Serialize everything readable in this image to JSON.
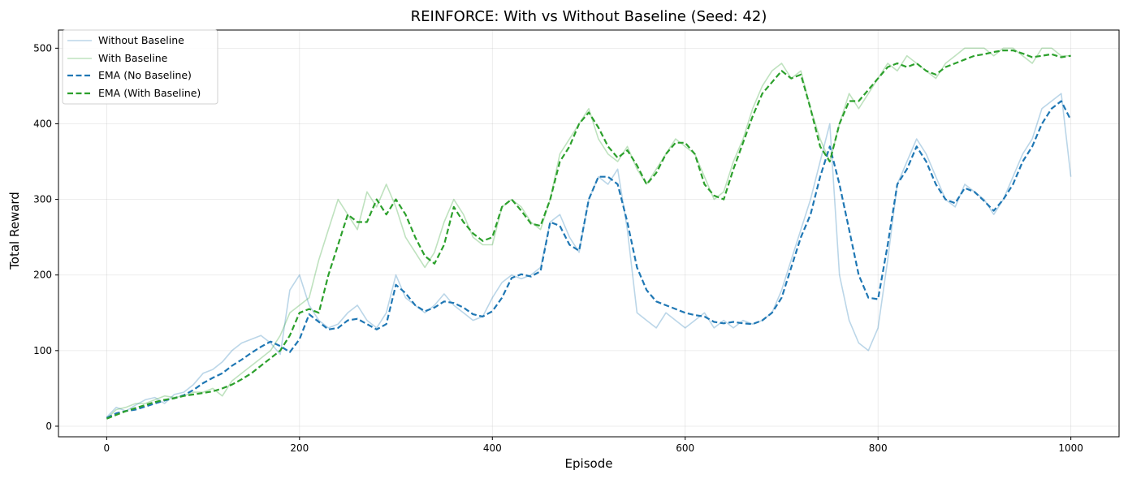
{
  "chart_data": {
    "type": "line",
    "title": "REINFORCE: With vs Without Baseline (Seed: 42)",
    "xlabel": "Episode",
    "ylabel": "Total Reward",
    "xlim": [
      -50,
      1050
    ],
    "ylim": [
      -14,
      524
    ],
    "xticks": [
      0,
      200,
      400,
      600,
      800,
      1000
    ],
    "yticks": [
      0,
      100,
      200,
      300,
      400,
      500
    ],
    "grid": true,
    "legend_position": "top-left",
    "colors": {
      "blue": "#1f77b4",
      "green": "#2ca02c"
    },
    "series": [
      {
        "name": "Without Baseline",
        "style": "raw",
        "color": "#1f77b4",
        "x": [
          0,
          10,
          20,
          30,
          40,
          50,
          60,
          70,
          80,
          90,
          100,
          110,
          120,
          130,
          140,
          150,
          160,
          170,
          180,
          190,
          200,
          210,
          220,
          230,
          240,
          250,
          260,
          270,
          280,
          290,
          300,
          310,
          320,
          330,
          340,
          350,
          360,
          370,
          380,
          390,
          400,
          410,
          420,
          430,
          440,
          450,
          460,
          470,
          480,
          490,
          500,
          510,
          520,
          530,
          540,
          550,
          560,
          570,
          580,
          590,
          600,
          610,
          620,
          630,
          640,
          650,
          660,
          670,
          680,
          690,
          700,
          710,
          720,
          730,
          740,
          750,
          760,
          770,
          780,
          790,
          800,
          810,
          820,
          830,
          840,
          850,
          860,
          870,
          880,
          890,
          900,
          910,
          920,
          930,
          940,
          950,
          960,
          970,
          980,
          990,
          1000
        ],
        "y": [
          12,
          25,
          20,
          28,
          35,
          38,
          30,
          42,
          45,
          55,
          70,
          75,
          85,
          100,
          110,
          115,
          120,
          110,
          95,
          180,
          200,
          160,
          140,
          130,
          135,
          150,
          160,
          140,
          130,
          150,
          200,
          170,
          160,
          150,
          160,
          175,
          160,
          150,
          140,
          145,
          170,
          190,
          200,
          195,
          200,
          210,
          270,
          280,
          250,
          230,
          300,
          330,
          320,
          340,
          260,
          150,
          140,
          130,
          150,
          140,
          130,
          140,
          150,
          130,
          140,
          130,
          140,
          135,
          140,
          150,
          180,
          220,
          260,
          300,
          350,
          400,
          200,
          140,
          110,
          100,
          130,
          220,
          320,
          350,
          380,
          360,
          330,
          300,
          290,
          320,
          310,
          300,
          280,
          300,
          330,
          360,
          380,
          420,
          430,
          440,
          330
        ]
      },
      {
        "name": "With Baseline",
        "style": "raw",
        "color": "#2ca02c",
        "x": [
          0,
          10,
          20,
          30,
          40,
          50,
          60,
          70,
          80,
          90,
          100,
          110,
          120,
          130,
          140,
          150,
          160,
          170,
          180,
          190,
          200,
          210,
          220,
          230,
          240,
          250,
          260,
          270,
          280,
          290,
          300,
          310,
          320,
          330,
          340,
          350,
          360,
          370,
          380,
          390,
          400,
          410,
          420,
          430,
          440,
          450,
          460,
          470,
          480,
          490,
          500,
          510,
          520,
          530,
          540,
          550,
          560,
          570,
          580,
          590,
          600,
          610,
          620,
          630,
          640,
          650,
          660,
          670,
          680,
          690,
          700,
          710,
          720,
          730,
          740,
          750,
          760,
          770,
          780,
          790,
          800,
          810,
          820,
          830,
          840,
          850,
          860,
          870,
          880,
          890,
          900,
          910,
          920,
          930,
          940,
          950,
          960,
          970,
          980,
          990,
          1000
        ],
        "y": [
          10,
          22,
          25,
          30,
          30,
          35,
          40,
          38,
          40,
          45,
          45,
          50,
          40,
          60,
          70,
          80,
          90,
          100,
          120,
          150,
          160,
          170,
          220,
          260,
          300,
          280,
          260,
          310,
          290,
          320,
          290,
          250,
          230,
          210,
          230,
          270,
          300,
          280,
          250,
          240,
          240,
          290,
          300,
          290,
          270,
          260,
          300,
          360,
          380,
          400,
          420,
          380,
          360,
          350,
          370,
          340,
          320,
          340,
          360,
          380,
          370,
          360,
          330,
          300,
          310,
          350,
          380,
          420,
          450,
          470,
          480,
          460,
          470,
          420,
          380,
          350,
          400,
          440,
          420,
          440,
          460,
          480,
          470,
          490,
          480,
          470,
          460,
          480,
          490,
          500,
          500,
          500,
          490,
          500,
          500,
          490,
          480,
          500,
          500,
          490,
          490
        ]
      },
      {
        "name": "EMA (No Baseline)",
        "style": "ema",
        "color": "#1f77b4",
        "x": [
          0,
          10,
          20,
          30,
          40,
          50,
          60,
          70,
          80,
          90,
          100,
          110,
          120,
          130,
          140,
          150,
          160,
          170,
          180,
          190,
          200,
          210,
          220,
          230,
          240,
          250,
          260,
          270,
          280,
          290,
          300,
          310,
          320,
          330,
          340,
          350,
          360,
          370,
          380,
          390,
          400,
          410,
          420,
          430,
          440,
          450,
          460,
          470,
          480,
          490,
          500,
          510,
          520,
          530,
          540,
          550,
          560,
          570,
          580,
          590,
          600,
          610,
          620,
          630,
          640,
          650,
          660,
          670,
          680,
          690,
          700,
          710,
          720,
          730,
          740,
          750,
          760,
          770,
          780,
          790,
          800,
          810,
          820,
          830,
          840,
          850,
          860,
          870,
          880,
          890,
          900,
          910,
          920,
          930,
          940,
          950,
          960,
          970,
          980,
          990,
          1000
        ],
        "y": [
          11,
          17,
          20,
          22,
          26,
          30,
          34,
          37,
          41,
          48,
          57,
          64,
          70,
          80,
          88,
          97,
          105,
          112,
          106,
          98,
          115,
          148,
          138,
          128,
          130,
          140,
          142,
          135,
          128,
          135,
          187,
          176,
          160,
          152,
          157,
          165,
          163,
          157,
          148,
          145,
          152,
          170,
          196,
          201,
          198,
          205,
          270,
          265,
          240,
          232,
          300,
          330,
          330,
          320,
          270,
          210,
          180,
          165,
          160,
          155,
          150,
          147,
          145,
          138,
          136,
          138,
          136,
          135,
          140,
          150,
          170,
          210,
          250,
          280,
          330,
          370,
          320,
          260,
          200,
          170,
          168,
          240,
          320,
          340,
          370,
          350,
          320,
          300,
          295,
          315,
          310,
          298,
          285,
          300,
          320,
          350,
          370,
          400,
          420,
          430,
          405
        ]
      },
      {
        "name": "EMA (With Baseline)",
        "style": "ema",
        "color": "#2ca02c",
        "x": [
          0,
          10,
          20,
          30,
          40,
          50,
          60,
          70,
          80,
          90,
          100,
          110,
          120,
          130,
          140,
          150,
          160,
          170,
          180,
          190,
          200,
          210,
          220,
          230,
          240,
          250,
          260,
          270,
          280,
          290,
          300,
          310,
          320,
          330,
          340,
          350,
          360,
          370,
          380,
          390,
          400,
          410,
          420,
          430,
          440,
          450,
          460,
          470,
          480,
          490,
          500,
          510,
          520,
          530,
          540,
          550,
          560,
          570,
          580,
          590,
          600,
          610,
          620,
          630,
          640,
          650,
          660,
          670,
          680,
          690,
          700,
          710,
          720,
          730,
          740,
          750,
          760,
          770,
          780,
          790,
          800,
          810,
          820,
          830,
          840,
          850,
          860,
          870,
          880,
          890,
          900,
          910,
          920,
          930,
          940,
          950,
          960,
          970,
          980,
          990,
          1000
        ],
        "y": [
          10,
          15,
          20,
          24,
          28,
          32,
          35,
          37,
          40,
          42,
          44,
          46,
          50,
          55,
          62,
          70,
          80,
          90,
          100,
          120,
          150,
          155,
          150,
          200,
          240,
          280,
          270,
          270,
          300,
          280,
          300,
          280,
          250,
          225,
          215,
          240,
          290,
          270,
          255,
          245,
          250,
          290,
          300,
          285,
          268,
          265,
          300,
          350,
          370,
          400,
          415,
          395,
          370,
          355,
          365,
          345,
          320,
          335,
          360,
          375,
          375,
          360,
          320,
          305,
          300,
          340,
          375,
          410,
          440,
          455,
          470,
          460,
          465,
          420,
          370,
          350,
          400,
          430,
          430,
          445,
          460,
          475,
          480,
          475,
          480,
          470,
          465,
          475,
          480,
          485,
          490,
          492,
          495,
          497,
          497,
          493,
          488,
          490,
          492,
          488,
          490
        ]
      }
    ]
  }
}
